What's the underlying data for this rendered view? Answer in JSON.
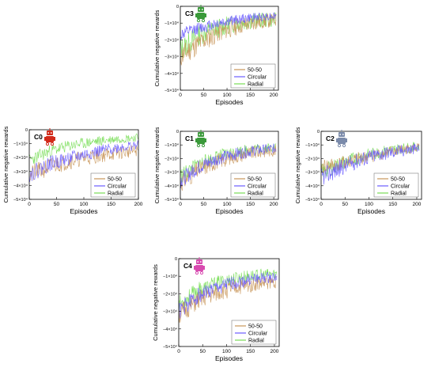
{
  "chart_data": [
    {
      "id": "C3",
      "type": "line",
      "xlabel": "Episodes",
      "ylabel": "Cumulative negative rewards",
      "xlim": [
        0,
        210
      ],
      "ylim": [
        -50000,
        0
      ],
      "xticks": [
        0,
        50,
        100,
        150,
        200
      ],
      "yticks": [
        0,
        -10000,
        -20000,
        -30000,
        -40000,
        -50000
      ],
      "ytick_labels": [
        "0",
        "−1×10⁴",
        "−2×10⁴",
        "−3×10⁴",
        "−4×10⁴",
        "−5×10⁴"
      ],
      "legend_position": "bottom-right",
      "robot_icon_color": "#3a9a3a",
      "series": [
        {
          "name": "50-50",
          "color": "#c8965a",
          "trend": [
            [
              0,
              -30000
            ],
            [
              40,
              -22000
            ],
            [
              80,
              -16000
            ],
            [
              120,
              -12000
            ],
            [
              160,
              -9500
            ],
            [
              205,
              -8000
            ]
          ],
          "noise": 7000,
          "seed": 11
        },
        {
          "name": "Circular",
          "color": "#6a5cff",
          "trend": [
            [
              0,
              -17000
            ],
            [
              40,
              -13000
            ],
            [
              80,
              -10000
            ],
            [
              120,
              -8000
            ],
            [
              160,
              -6500
            ],
            [
              205,
              -5500
            ]
          ],
          "noise": 4000,
          "seed": 12
        },
        {
          "name": "Radial",
          "color": "#77dd55",
          "trend": [
            [
              0,
              -26000
            ],
            [
              40,
              -17000
            ],
            [
              80,
              -13000
            ],
            [
              120,
              -10000
            ],
            [
              160,
              -8500
            ],
            [
              205,
              -8000
            ]
          ],
          "noise": 7000,
          "seed": 13
        }
      ]
    },
    {
      "id": "C0",
      "type": "line",
      "xlabel": "Episodes",
      "ylabel": "Cumulative negative rewards",
      "xlim": [
        0,
        200
      ],
      "ylim": [
        -50000,
        0
      ],
      "xticks": [
        0,
        50,
        100,
        150,
        200
      ],
      "yticks": [
        0,
        -10000,
        -20000,
        -30000,
        -40000,
        -50000
      ],
      "ytick_labels": [
        "0",
        "−1×10⁴",
        "−2×10⁴",
        "−3×10⁴",
        "−4×10⁴",
        "−5×10⁴"
      ],
      "legend_position": "bottom-right",
      "robot_icon_color": "#d22a1a",
      "series": [
        {
          "name": "50-50",
          "color": "#c8965a",
          "trend": [
            [
              0,
              -33000
            ],
            [
              40,
              -26000
            ],
            [
              80,
              -22000
            ],
            [
              120,
              -19000
            ],
            [
              160,
              -17000
            ],
            [
              200,
              -15000
            ]
          ],
          "noise": 7000,
          "seed": 21
        },
        {
          "name": "Circular",
          "color": "#6a5cff",
          "trend": [
            [
              0,
              -32000
            ],
            [
              40,
              -24000
            ],
            [
              80,
              -20000
            ],
            [
              120,
              -16000
            ],
            [
              160,
              -13000
            ],
            [
              200,
              -11000
            ]
          ],
          "noise": 6000,
          "seed": 22
        },
        {
          "name": "Radial",
          "color": "#77dd55",
          "trend": [
            [
              0,
              -22000
            ],
            [
              40,
              -15000
            ],
            [
              80,
              -11000
            ],
            [
              120,
              -8500
            ],
            [
              160,
              -6500
            ],
            [
              200,
              -5500
            ]
          ],
          "noise": 5000,
          "seed": 23
        }
      ]
    },
    {
      "id": "C1",
      "type": "line",
      "xlabel": "Episodes",
      "ylabel": "Cumulative negative rewards",
      "xlim": [
        0,
        210
      ],
      "ylim": [
        -50000,
        0
      ],
      "xticks": [
        0,
        50,
        100,
        150,
        200
      ],
      "yticks": [
        0,
        -10000,
        -20000,
        -30000,
        -40000,
        -50000
      ],
      "ytick_labels": [
        "0",
        "−1×10⁴",
        "−2×10⁴",
        "−3×10⁴",
        "−4×10⁴",
        "−5×10⁴"
      ],
      "legend_position": "bottom-right",
      "robot_icon_color": "#3a9a3a",
      "series": [
        {
          "name": "50-50",
          "color": "#c8965a",
          "trend": [
            [
              0,
              -38000
            ],
            [
              40,
              -28000
            ],
            [
              80,
              -22000
            ],
            [
              120,
              -18000
            ],
            [
              160,
              -15500
            ],
            [
              205,
              -14000
            ]
          ],
          "noise": 7000,
          "seed": 31
        },
        {
          "name": "Circular",
          "color": "#6a5cff",
          "trend": [
            [
              0,
              -36000
            ],
            [
              40,
              -26000
            ],
            [
              80,
              -20000
            ],
            [
              120,
              -16500
            ],
            [
              160,
              -14000
            ],
            [
              205,
              -12500
            ]
          ],
          "noise": 6000,
          "seed": 32
        },
        {
          "name": "Radial",
          "color": "#77dd55",
          "trend": [
            [
              0,
              -33000
            ],
            [
              40,
              -24000
            ],
            [
              80,
              -18500
            ],
            [
              120,
              -15000
            ],
            [
              160,
              -13000
            ],
            [
              205,
              -11500
            ]
          ],
          "noise": 6000,
          "seed": 33
        }
      ]
    },
    {
      "id": "C2",
      "type": "line",
      "xlabel": "Episodes",
      "ylabel": "Cumulative negative rewards",
      "xlim": [
        0,
        210
      ],
      "ylim": [
        -50000,
        0
      ],
      "xticks": [
        0,
        50,
        100,
        150,
        200
      ],
      "yticks": [
        0,
        -10000,
        -20000,
        -30000,
        -40000,
        -50000
      ],
      "ytick_labels": [
        "0",
        "−1×10⁴",
        "−2×10⁴",
        "−3×10⁴",
        "−4×10⁴",
        "−5×10⁴"
      ],
      "legend_position": "bottom-right",
      "robot_icon_color": "#7a8aaa",
      "series": [
        {
          "name": "50-50",
          "color": "#c8965a",
          "trend": [
            [
              0,
              -26000
            ],
            [
              40,
              -24000
            ],
            [
              80,
              -20000
            ],
            [
              120,
              -17000
            ],
            [
              160,
              -14000
            ],
            [
              205,
              -12000
            ]
          ],
          "noise": 6000,
          "seed": 41
        },
        {
          "name": "Circular",
          "color": "#6a5cff",
          "trend": [
            [
              0,
              -34000
            ],
            [
              40,
              -27000
            ],
            [
              80,
              -21000
            ],
            [
              120,
              -17000
            ],
            [
              160,
              -14500
            ],
            [
              205,
              -12500
            ]
          ],
          "noise": 7000,
          "seed": 42
        },
        {
          "name": "Radial",
          "color": "#77dd55",
          "trend": [
            [
              0,
              -30000
            ],
            [
              40,
              -24000
            ],
            [
              80,
              -19000
            ],
            [
              120,
              -15500
            ],
            [
              160,
              -13000
            ],
            [
              205,
              -11000
            ]
          ],
          "noise": 6000,
          "seed": 43
        }
      ]
    },
    {
      "id": "C4",
      "type": "line",
      "xlabel": "Episodes",
      "ylabel": "Cumulative negative rewards",
      "xlim": [
        0,
        210
      ],
      "ylim": [
        -50000,
        0
      ],
      "xticks": [
        0,
        50,
        100,
        150,
        200
      ],
      "yticks": [
        0,
        -10000,
        -20000,
        -30000,
        -40000,
        -50000
      ],
      "ytick_labels": [
        "0",
        "−1×10⁴",
        "−2×10⁴",
        "−3×10⁴",
        "−4×10⁴",
        "−5×10⁴"
      ],
      "legend_position": "bottom-right",
      "robot_icon_color": "#d84ab0",
      "series": [
        {
          "name": "50-50",
          "color": "#c8965a",
          "trend": [
            [
              0,
              -32000
            ],
            [
              40,
              -24000
            ],
            [
              80,
              -19500
            ],
            [
              120,
              -16500
            ],
            [
              160,
              -14500
            ],
            [
              205,
              -13000
            ]
          ],
          "noise": 6000,
          "seed": 51
        },
        {
          "name": "Circular",
          "color": "#6a5cff",
          "trend": [
            [
              0,
              -30000
            ],
            [
              40,
              -21000
            ],
            [
              80,
              -16500
            ],
            [
              120,
              -13500
            ],
            [
              160,
              -11500
            ],
            [
              205,
              -10500
            ]
          ],
          "noise": 5000,
          "seed": 52
        },
        {
          "name": "Radial",
          "color": "#77dd55",
          "trend": [
            [
              0,
              -26000
            ],
            [
              40,
              -18000
            ],
            [
              80,
              -14000
            ],
            [
              120,
              -11000
            ],
            [
              160,
              -9500
            ],
            [
              205,
              -8500
            ]
          ],
          "noise": 5000,
          "seed": 53
        }
      ]
    }
  ]
}
